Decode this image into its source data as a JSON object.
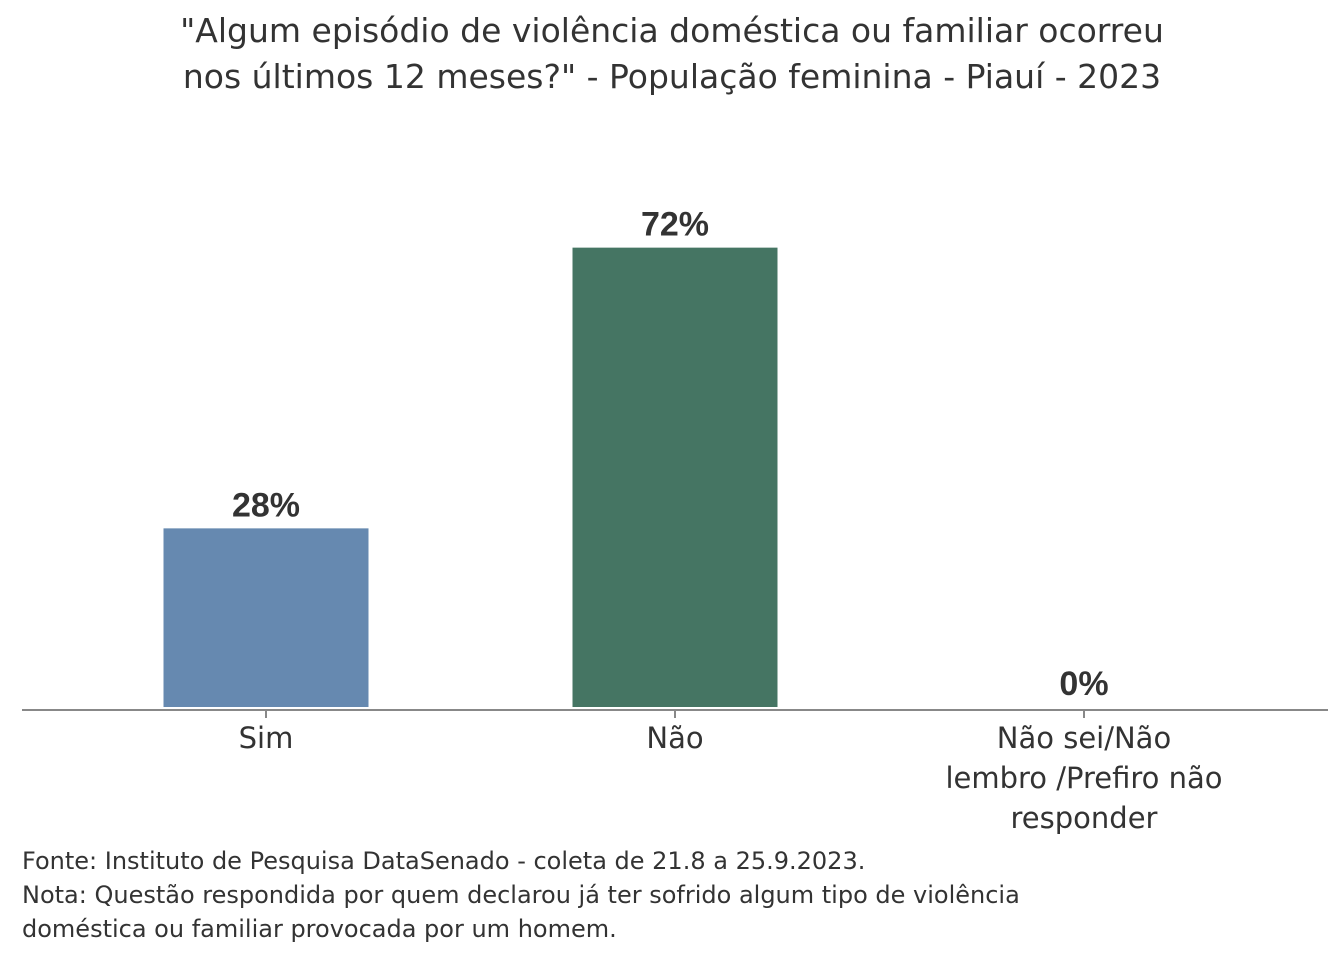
{
  "chart_data": {
    "type": "bar",
    "title_lines": [
      "\"Algum episódio de violência doméstica ou familiar ocorreu",
      "nos últimos 12 meses?\" - População feminina - Piauí - 2023"
    ],
    "categories": [
      [
        "Sim"
      ],
      [
        "Não"
      ],
      [
        "Não sei/Não",
        "lembro /Prefiro não",
        "responder"
      ]
    ],
    "values": [
      28,
      72,
      0
    ],
    "data_labels": [
      "28%",
      "72%",
      "0%"
    ],
    "colors": [
      "#6689b0",
      "#457563",
      "#457563"
    ],
    "ylim": [
      0,
      100
    ],
    "grid": false
  },
  "footer": {
    "source": "Fonte: Instituto de Pesquisa DataSenado - coleta de 21.8 a 25.9.2023.",
    "note_lines": [
      "Nota: Questão respondida por quem declarou já ter sofrido algum tipo de violência",
      "doméstica ou familiar provocada por um homem."
    ]
  }
}
